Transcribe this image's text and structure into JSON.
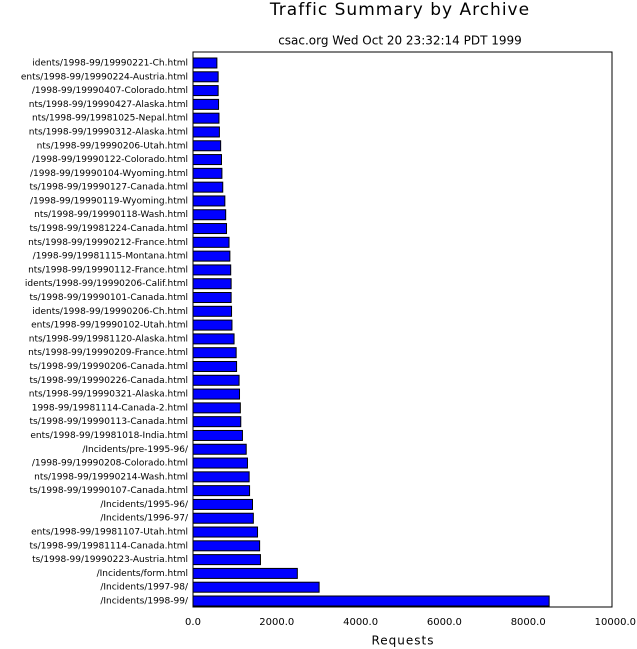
{
  "chart_data": {
    "type": "barh",
    "title": "Traffic Summary by Archive",
    "subtitle": "csac.org Wed Oct 20 23:32:14 PDT 1999",
    "x_label": "Requests",
    "color": "#0000ff",
    "categories": [
      "idents/1998-99/19990221-Ch.html",
      "ents/1998-99/19990224-Austria.html",
      "/1998-99/19990407-Colorado.html",
      "nts/1998-99/19990427-Alaska.html",
      "nts/1998-99/19981025-Nepal.html",
      "nts/1998-99/19990312-Alaska.html",
      "nts/1998-99/19990206-Utah.html",
      "/1998-99/19990122-Colorado.html",
      "/1998-99/19990104-Wyoming.html",
      "ts/1998-99/19990127-Canada.html",
      "/1998-99/19990119-Wyoming.html",
      "nts/1998-99/19990118-Wash.html",
      "ts/1998-99/19981224-Canada.html",
      "nts/1998-99/19990212-France.html",
      "/1998-99/19981115-Montana.html",
      "nts/1998-99/19990112-France.html",
      "idents/1998-99/19990206-Calif.html",
      "ts/1998-99/19990101-Canada.html",
      "idents/1998-99/19990206-Ch.html",
      "ents/1998-99/19990102-Utah.html",
      "nts/1998-99/19981120-Alaska.html",
      "nts/1998-99/19990209-France.html",
      "ts/1998-99/19990206-Canada.html",
      "ts/1998-99/19990226-Canada.html",
      "nts/1998-99/19990321-Alaska.html",
      "1998-99/19981114-Canada-2.html",
      "ts/1998-99/19990113-Canada.html",
      "ents/1998-99/19981018-India.html",
      "/Incidents/pre-1995-96/",
      "/1998-99/19990208-Colorado.html",
      "nts/1998-99/19990214-Wash.html",
      "ts/1998-99/19990107-Canada.html",
      "/Incidents/1995-96/",
      "/Incidents/1996-97/",
      "ents/1998-99/19981107-Utah.html",
      "ts/1998-99/19981114-Canada.html",
      "ts/1998-99/19990223-Austria.html",
      "/Incidents/form.html",
      "/Incidents/1997-98/",
      "/Incidents/1998-99/"
    ],
    "values": [
      570,
      600,
      600,
      610,
      620,
      630,
      660,
      680,
      690,
      710,
      760,
      780,
      800,
      860,
      880,
      900,
      910,
      910,
      920,
      930,
      980,
      1030,
      1040,
      1100,
      1110,
      1130,
      1140,
      1180,
      1270,
      1300,
      1340,
      1350,
      1420,
      1440,
      1540,
      1590,
      1610,
      2490,
      3010,
      8500
    ],
    "xlim": [
      0,
      10000
    ],
    "xticks": [
      {
        "value": 0,
        "label": "0.0"
      },
      {
        "value": 2000,
        "label": "2000.0"
      },
      {
        "value": 4000,
        "label": "4000.0"
      },
      {
        "value": 6000,
        "label": "6000.0"
      },
      {
        "value": 8000,
        "label": "8000.0"
      },
      {
        "value": 10000,
        "label": "10000.0"
      }
    ]
  }
}
